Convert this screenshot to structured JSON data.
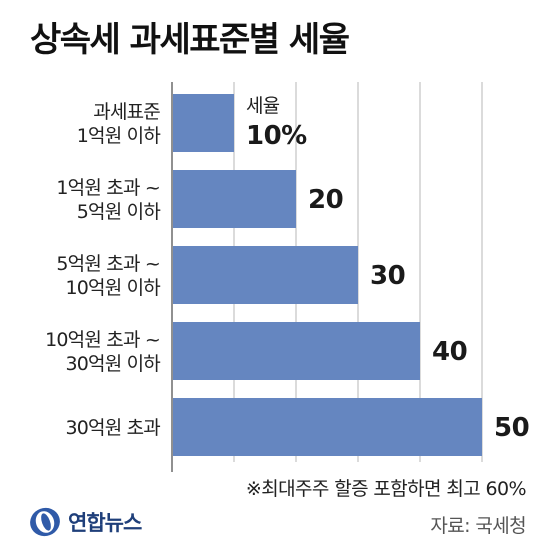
{
  "title": "상속세 과세표준별 세율",
  "footnote": "※최대주주 할증 포함하면 최고 60%",
  "source": "자료: 국세청",
  "logo_text": "연합뉴스",
  "colors": {
    "bar": "#6586c0",
    "gridline": "#b7b7b7",
    "logo": "#1f3f7a"
  },
  "chart_data": {
    "type": "bar",
    "orientation": "horizontal",
    "header_category": "과세표준",
    "header_value": "세율",
    "categories": [
      [
        "1억원 이하"
      ],
      [
        "1억원 초과 ~",
        "5억원 이하"
      ],
      [
        "5억원 초과 ~",
        "10억원 이하"
      ],
      [
        "10억원 초과 ~",
        "30억원 이하"
      ],
      [
        "30억원 초과"
      ]
    ],
    "values": [
      10,
      20,
      30,
      40,
      50
    ],
    "value_labels": [
      "10%",
      "20",
      "30",
      "40",
      "50"
    ],
    "xlim": [
      0,
      50
    ],
    "grid": true
  }
}
